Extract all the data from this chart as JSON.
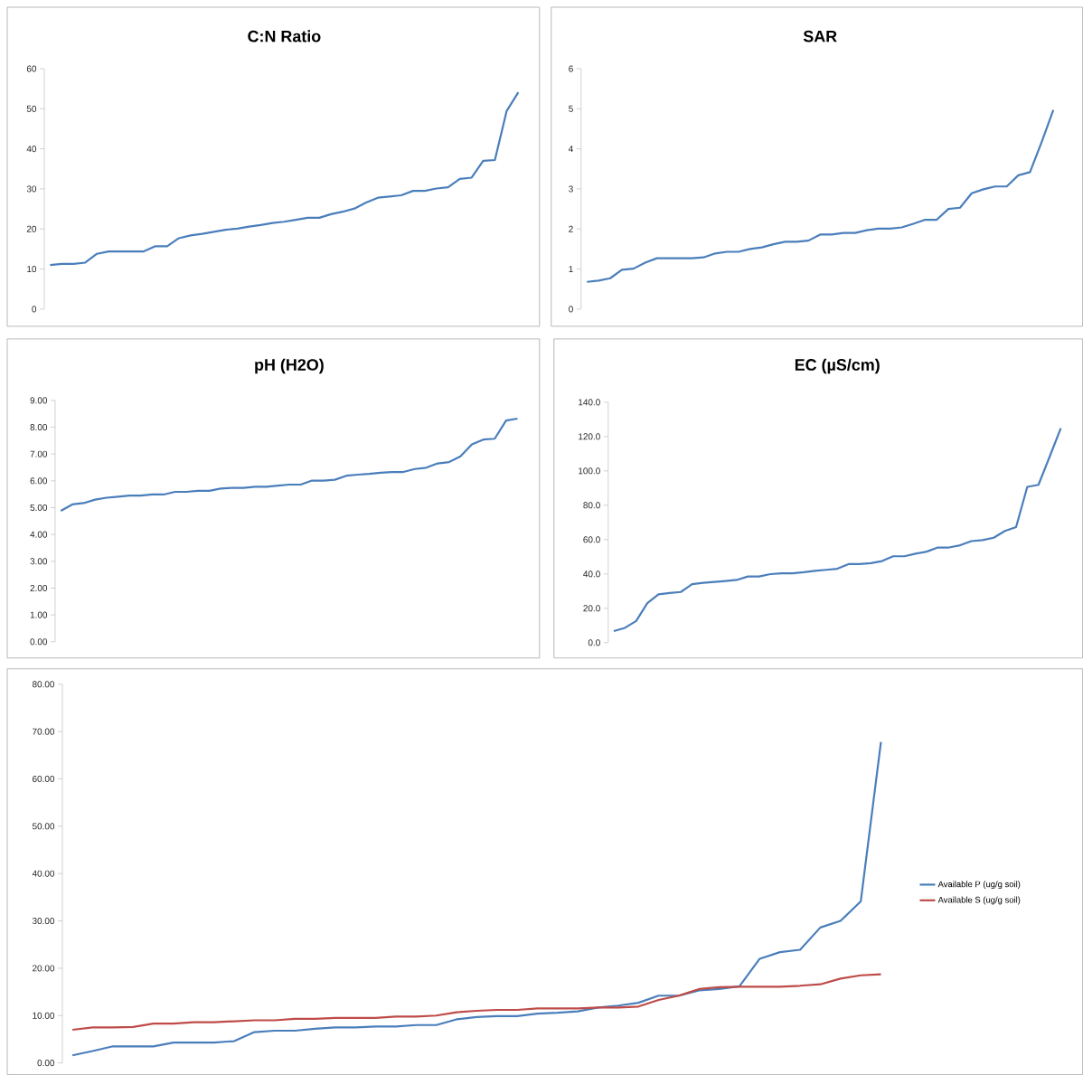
{
  "chart_data": [
    {
      "type": "line",
      "title": "C:N Ratio",
      "categories": [
        null,
        null,
        null,
        null,
        null,
        null,
        null,
        null,
        null,
        null,
        null,
        null,
        null,
        null,
        null,
        null,
        null,
        null,
        null,
        null,
        null,
        null,
        null,
        null,
        null,
        null,
        null,
        null,
        null,
        null,
        null,
        null,
        null,
        null,
        null,
        null,
        null,
        null,
        null,
        null,
        null
      ],
      "series": [
        {
          "color": "#4a7ebb",
          "values": [
            11.0,
            11.3,
            11.3,
            11.6,
            13.8,
            14.4,
            14.4,
            14.4,
            14.4,
            15.7,
            15.7,
            17.7,
            18.4,
            18.8,
            19.3,
            19.8,
            20.1,
            20.6,
            21.0,
            21.5,
            21.8,
            22.3,
            22.8,
            22.8,
            23.7,
            24.3,
            25.1,
            26.6,
            27.8,
            28.1,
            28.4,
            29.5,
            29.5,
            30.1,
            30.4,
            32.5,
            32.8,
            37.0,
            37.2,
            49.4,
            54.1
          ]
        }
      ],
      "ylim": [
        0,
        60
      ],
      "yticks": [
        0,
        10,
        20,
        30,
        40,
        50,
        60
      ]
    },
    {
      "type": "line",
      "title": "SAR",
      "categories": [
        null,
        null,
        null,
        null,
        null,
        null,
        null,
        null,
        null,
        null,
        null,
        null,
        null,
        null,
        null,
        null,
        null,
        null,
        null,
        null,
        null,
        null,
        null,
        null,
        null,
        null,
        null,
        null,
        null,
        null,
        null,
        null,
        null,
        null,
        null,
        null,
        null,
        null,
        null,
        null,
        null
      ],
      "series": [
        {
          "color": "#4a7ebb",
          "values": [
            0.68,
            0.71,
            0.77,
            0.98,
            1.01,
            1.16,
            1.27,
            1.27,
            1.27,
            1.27,
            1.29,
            1.39,
            1.43,
            1.43,
            1.5,
            1.54,
            1.62,
            1.68,
            1.68,
            1.71,
            1.86,
            1.86,
            1.9,
            1.9,
            1.97,
            2.01,
            2.01,
            2.04,
            2.13,
            2.23,
            2.23,
            2.5,
            2.53,
            2.89,
            2.99,
            3.06,
            3.06,
            3.34,
            3.42,
            4.17,
            4.97
          ]
        }
      ],
      "ylim": [
        0,
        6
      ],
      "yticks": [
        0,
        1,
        2,
        3,
        4,
        5,
        6
      ]
    },
    {
      "type": "line",
      "title": "pH (H2O)",
      "categories": [
        null,
        null,
        null,
        null,
        null,
        null,
        null,
        null,
        null,
        null,
        null,
        null,
        null,
        null,
        null,
        null,
        null,
        null,
        null,
        null,
        null,
        null,
        null,
        null,
        null,
        null,
        null,
        null,
        null,
        null,
        null,
        null,
        null,
        null,
        null,
        null,
        null,
        null,
        null,
        null,
        null
      ],
      "series": [
        {
          "color": "#4a7ebb",
          "values": [
            4.88,
            5.12,
            5.17,
            5.3,
            5.37,
            5.41,
            5.45,
            5.45,
            5.49,
            5.49,
            5.59,
            5.59,
            5.63,
            5.63,
            5.71,
            5.74,
            5.74,
            5.78,
            5.78,
            5.82,
            5.86,
            5.86,
            6.01,
            6.01,
            6.04,
            6.19,
            6.23,
            6.26,
            6.3,
            6.33,
            6.33,
            6.44,
            6.49,
            6.65,
            6.7,
            6.91,
            7.36,
            7.54,
            7.57,
            8.25,
            8.32
          ]
        }
      ],
      "ylim": [
        0,
        9
      ],
      "yticks": [
        {
          "value": 0,
          "label": "0.00"
        },
        {
          "value": 1,
          "label": "1.00"
        },
        {
          "value": 2,
          "label": "2.00"
        },
        {
          "value": 3,
          "label": "3.00"
        },
        {
          "value": 4,
          "label": "4.00"
        },
        {
          "value": 5,
          "label": "5.00"
        },
        {
          "value": 6,
          "label": "6.00"
        },
        {
          "value": 7,
          "label": "7.00"
        },
        {
          "value": 8,
          "label": "8.00"
        },
        {
          "value": 9,
          "label": "9.00"
        }
      ]
    },
    {
      "type": "line",
      "title": "EC (µS/cm)",
      "categories": [
        null,
        null,
        null,
        null,
        null,
        null,
        null,
        null,
        null,
        null,
        null,
        null,
        null,
        null,
        null,
        null,
        null,
        null,
        null,
        null,
        null,
        null,
        null,
        null,
        null,
        null,
        null,
        null,
        null,
        null,
        null,
        null,
        null,
        null,
        null,
        null,
        null,
        null,
        null,
        null,
        null
      ],
      "series": [
        {
          "color": "#4a7ebb",
          "values": [
            6.7,
            8.6,
            12.6,
            23.0,
            28.1,
            28.9,
            29.5,
            34.0,
            34.8,
            35.3,
            35.9,
            36.5,
            38.5,
            38.5,
            39.9,
            40.4,
            40.4,
            41.0,
            41.8,
            42.4,
            43.0,
            45.7,
            45.7,
            46.3,
            47.5,
            50.3,
            50.3,
            51.8,
            53.0,
            55.4,
            55.4,
            56.7,
            59.1,
            59.7,
            61.1,
            65.0,
            67.3,
            90.7,
            91.9,
            108.2,
            124.9
          ]
        }
      ],
      "ylim": [
        0,
        140
      ],
      "yticks": [
        {
          "value": 0,
          "label": "0.0"
        },
        {
          "value": 20,
          "label": "20.0"
        },
        {
          "value": 40,
          "label": "40.0"
        },
        {
          "value": 60,
          "label": "60.0"
        },
        {
          "value": 80,
          "label": "80.0"
        },
        {
          "value": 100,
          "label": "100.0"
        },
        {
          "value": 120,
          "label": "120.0"
        },
        {
          "value": 140,
          "label": "140.0"
        }
      ]
    },
    {
      "type": "line",
      "categories": [
        null,
        null,
        null,
        null,
        null,
        null,
        null,
        null,
        null,
        null,
        null,
        null,
        null,
        null,
        null,
        null,
        null,
        null,
        null,
        null,
        null,
        null,
        null,
        null,
        null,
        null,
        null,
        null,
        null,
        null,
        null,
        null,
        null,
        null,
        null,
        null,
        null,
        null,
        null,
        null,
        null
      ],
      "series": [
        {
          "name": "Available P (ug/g soil)",
          "color": "#4a7ebb",
          "values": [
            1.6,
            2.5,
            3.5,
            3.5,
            3.5,
            4.3,
            4.3,
            4.3,
            4.6,
            6.5,
            6.8,
            6.8,
            7.2,
            7.5,
            7.5,
            7.7,
            7.7,
            8.0,
            8.0,
            9.2,
            9.7,
            9.9,
            9.9,
            10.4,
            10.6,
            10.9,
            11.7,
            12.1,
            12.7,
            14.2,
            14.2,
            15.3,
            15.6,
            16.2,
            22.0,
            23.4,
            23.9,
            28.6,
            30.0,
            34.1,
            67.8
          ]
        },
        {
          "name": "Available S (ug/g soil)",
          "color": "#be4b48",
          "values": [
            7.0,
            7.5,
            7.5,
            7.6,
            8.3,
            8.3,
            8.6,
            8.6,
            8.8,
            9.0,
            9.0,
            9.3,
            9.3,
            9.5,
            9.5,
            9.5,
            9.8,
            9.8,
            10.0,
            10.7,
            11.0,
            11.2,
            11.2,
            11.5,
            11.5,
            11.5,
            11.7,
            11.7,
            11.9,
            13.3,
            14.2,
            15.6,
            16.0,
            16.1,
            16.1,
            16.1,
            16.3,
            16.6,
            17.8,
            18.5,
            18.7
          ]
        }
      ],
      "ylim": [
        0,
        80
      ],
      "yticks": [
        {
          "value": 0,
          "label": "0.00"
        },
        {
          "value": 10,
          "label": "10.00"
        },
        {
          "value": 20,
          "label": "20.00"
        },
        {
          "value": 30,
          "label": "30.00"
        },
        {
          "value": 40,
          "label": "40.00"
        },
        {
          "value": 50,
          "label": "50.00"
        },
        {
          "value": 60,
          "label": "60.00"
        },
        {
          "value": 70,
          "label": "70.00"
        },
        {
          "value": 80,
          "label": "80.00"
        }
      ],
      "legend": "right"
    }
  ]
}
